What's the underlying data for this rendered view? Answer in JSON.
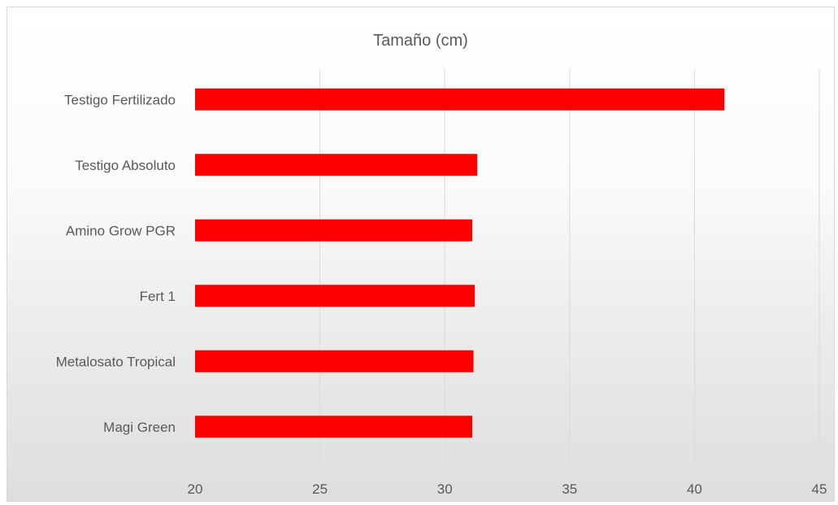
{
  "chart_data": {
    "type": "bar",
    "orientation": "horizontal",
    "title": "Tamaño (cm)",
    "xlabel": "",
    "ylabel": "",
    "categories": [
      "Testigo Fertilizado",
      "Testigo Absoluto",
      "Amino Grow PGR",
      "Fert 1",
      "Metalosato Tropical",
      "Magi Green"
    ],
    "values": [
      41.2,
      31.3,
      31.1,
      31.2,
      31.15,
      31.1
    ],
    "xlim": [
      20,
      45
    ],
    "xticks": [
      "20",
      "25",
      "30",
      "35",
      "40",
      "45"
    ],
    "grid": true,
    "legend": "none",
    "bar_color": "#ff0000"
  }
}
